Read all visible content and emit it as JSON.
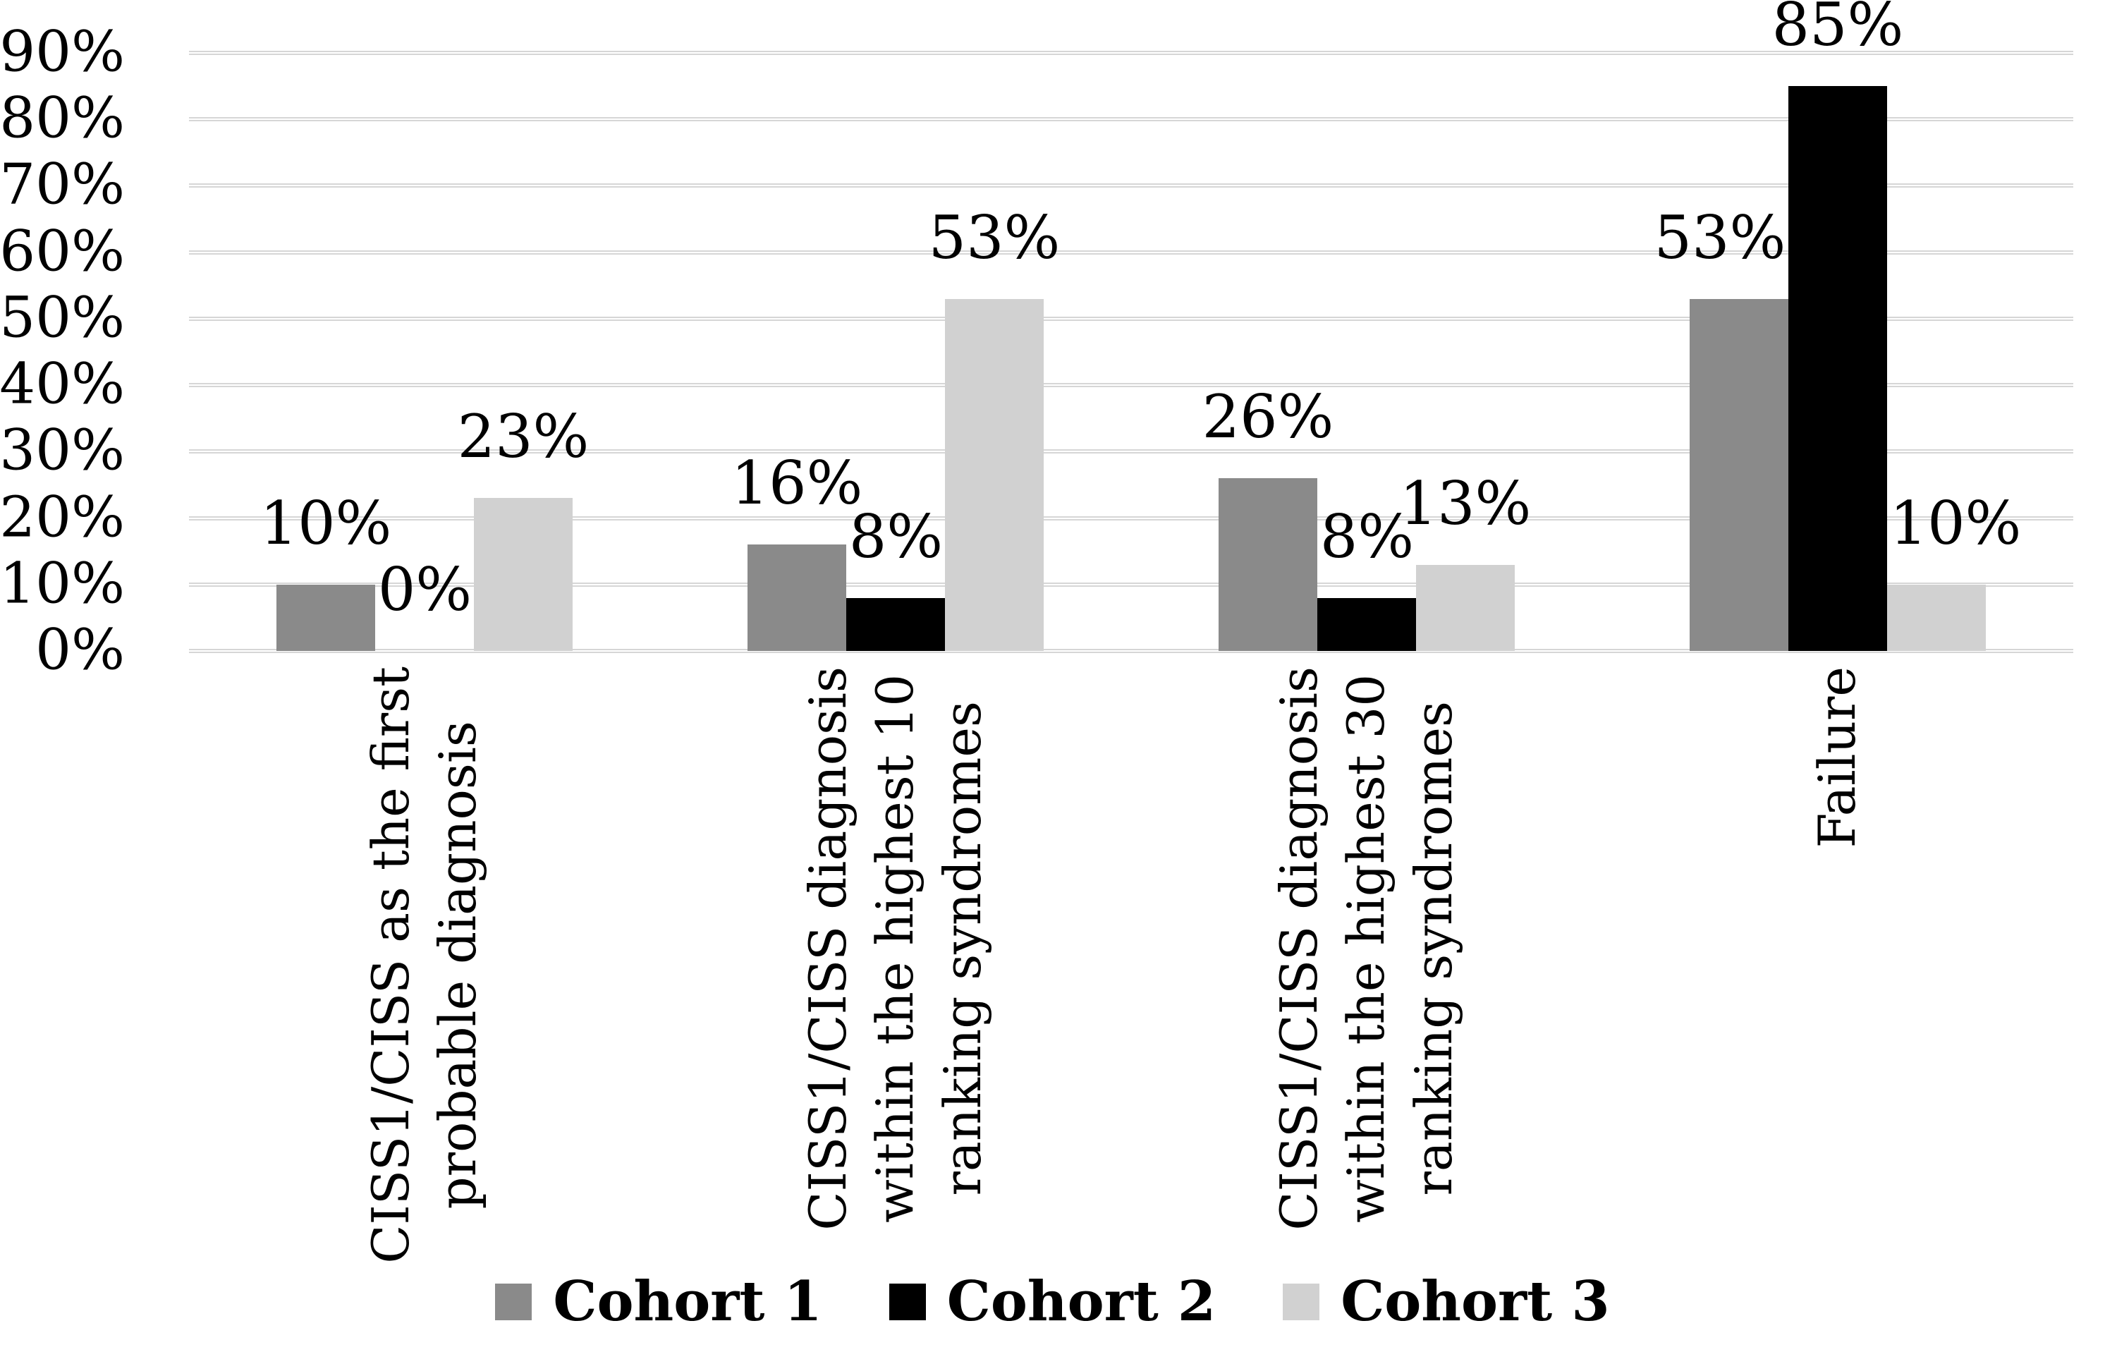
{
  "chart_data": {
    "type": "bar",
    "title": "",
    "xlabel": "",
    "ylabel": "",
    "grid": true,
    "gridline_color": "#d6d6d6",
    "background_color": "#ffffff",
    "legend_position": "bottom",
    "data_labels_shown": true,
    "value_label_suffix": "%",
    "y_axis": {
      "min": 0,
      "max": 90,
      "step": 10,
      "tick_suffix": "%",
      "tick_labels": [
        "0%",
        "10%",
        "20%",
        "30%",
        "40%",
        "50%",
        "60%",
        "70%",
        "80%",
        "90%"
      ]
    },
    "categories": [
      "CISS1/CISS as the first probable diagnosis",
      "CISS1/CISS diagnosis within the highest 10 ranking syndromes",
      "CISS1/CISS diagnosis within the highest 30 ranking syndromes",
      "Failure"
    ],
    "category_label_lines": [
      [
        "CISS1/CISS as the first",
        "probable diagnosis"
      ],
      [
        "CISS1/CISS diagnosis",
        "within the highest 10",
        "ranking syndromes"
      ],
      [
        "CISS1/CISS diagnosis",
        "within the highest 30",
        "ranking syndromes"
      ],
      [
        "Failure"
      ]
    ],
    "series": [
      {
        "name": "Cohort 1",
        "color": "#8a8a8a",
        "values": [
          10,
          16,
          26,
          53
        ],
        "value_labels": [
          "10%",
          "16%",
          "26%",
          "53%"
        ]
      },
      {
        "name": "Cohort 2",
        "color": "#000000",
        "values": [
          0,
          8,
          8,
          85
        ],
        "value_labels": [
          "0%",
          "8%",
          "8%",
          "85%"
        ]
      },
      {
        "name": "Cohort 3",
        "color": "#d1d1d1",
        "values": [
          23,
          53,
          13,
          10
        ],
        "value_labels": [
          "23%",
          "53%",
          "13%",
          "10%"
        ]
      }
    ]
  }
}
